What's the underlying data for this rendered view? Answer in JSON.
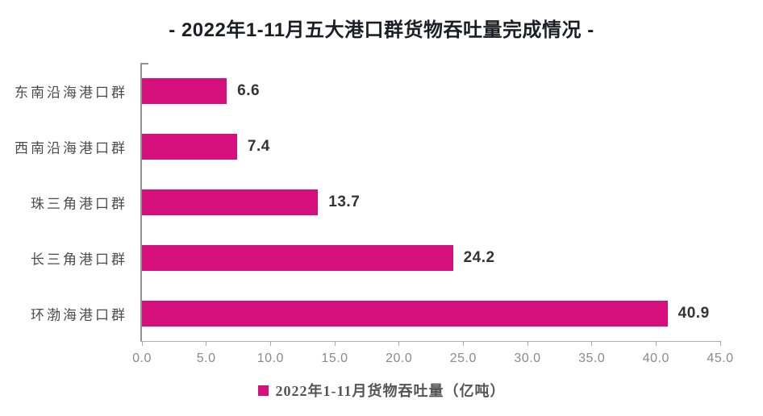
{
  "title": "- 2022年1-11月五大港口群货物吞吐量完成情况 -",
  "legend": {
    "label": "2022年1-11月货物吞吐量（亿吨）"
  },
  "chart_data": {
    "type": "bar",
    "orientation": "horizontal",
    "title": "- 2022年1-11月五大港口群货物吞吐量完成情况 -",
    "categories": [
      "东南沿海港口群",
      "西南沿海港口群",
      "珠三角港口群",
      "长三角港口群",
      "环渤海港口群"
    ],
    "series": [
      {
        "name": "2022年1-11月货物吞吐量（亿吨）",
        "values": [
          6.6,
          7.4,
          13.7,
          24.2,
          40.9
        ]
      }
    ],
    "value_labels": [
      "6.6",
      "7.4",
      "13.7",
      "24.2",
      "40.9"
    ],
    "xlabel": "",
    "ylabel": "",
    "xlim": [
      0,
      45
    ],
    "xtick_labels": [
      "0.0",
      "5.0",
      "10.0",
      "15.0",
      "20.0",
      "25.0",
      "30.0",
      "35.0",
      "40.0",
      "45.0"
    ],
    "grid": false,
    "legend_position": "bottom-center",
    "colors": {
      "bar": "#d5107c",
      "title": "#1d1d26",
      "category_label": "#4b4b4b",
      "value_label": "#343434",
      "axis": "#939393",
      "tick_label": "#8a8a8a",
      "legend_label": "#555555"
    }
  }
}
